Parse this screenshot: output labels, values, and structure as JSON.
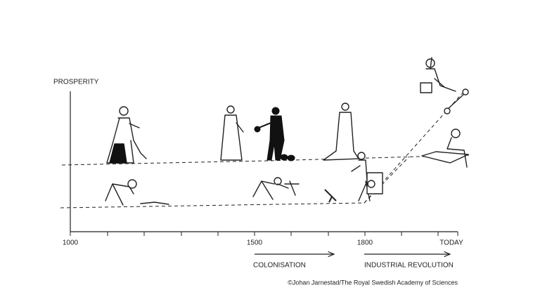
{
  "axis": {
    "label": "PROSPERITY",
    "ticks": [
      "1000",
      "1500",
      "1800",
      "TODAY"
    ]
  },
  "periods": [
    "COLONISATION",
    "INDUSTRIAL REVOLUTION"
  ],
  "credit": "©Johan Jarnestad/The Royal Swedish Academy of Sciences"
}
